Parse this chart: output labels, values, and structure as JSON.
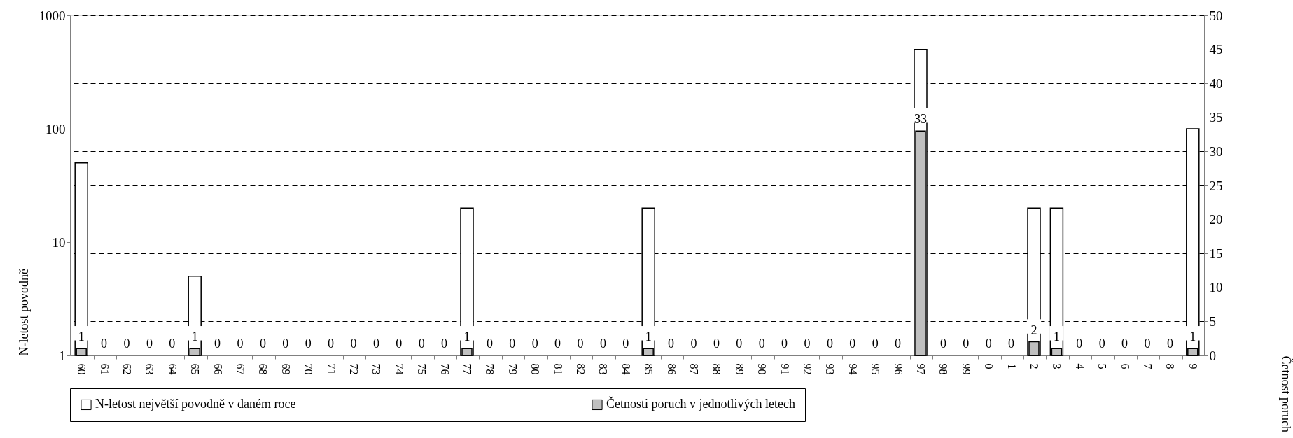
{
  "chart_data": {
    "type": "bar",
    "categories": [
      "60",
      "61",
      "62",
      "63",
      "64",
      "65",
      "66",
      "67",
      "68",
      "69",
      "70",
      "71",
      "72",
      "73",
      "74",
      "75",
      "76",
      "77",
      "78",
      "79",
      "80",
      "81",
      "82",
      "83",
      "84",
      "85",
      "86",
      "87",
      "88",
      "89",
      "90",
      "91",
      "92",
      "93",
      "94",
      "95",
      "96",
      "97",
      "98",
      "99",
      "0",
      "1",
      "2",
      "3",
      "4",
      "5",
      "6",
      "7",
      "8",
      "9"
    ],
    "series": [
      {
        "name": "N-letost největší povodně v daném roce",
        "color": "#ffffff",
        "values": [
          50,
          null,
          null,
          null,
          null,
          5,
          null,
          null,
          null,
          null,
          null,
          null,
          null,
          null,
          null,
          null,
          null,
          20,
          null,
          null,
          null,
          null,
          null,
          null,
          null,
          20,
          null,
          null,
          null,
          null,
          null,
          null,
          null,
          null,
          null,
          null,
          null,
          500,
          null,
          null,
          null,
          null,
          20,
          20,
          null,
          null,
          null,
          null,
          null,
          100
        ]
      },
      {
        "name": "Četnosti poruch v jednotlivých letech",
        "color": "#c0c0c0",
        "axis": "y2",
        "values": [
          1,
          0,
          0,
          0,
          0,
          1,
          0,
          0,
          0,
          0,
          0,
          0,
          0,
          0,
          0,
          0,
          0,
          1,
          0,
          0,
          0,
          0,
          0,
          0,
          0,
          1,
          0,
          0,
          0,
          0,
          0,
          0,
          0,
          0,
          0,
          0,
          0,
          33,
          0,
          0,
          0,
          0,
          2,
          1,
          0,
          0,
          0,
          0,
          0,
          1
        ],
        "value_labels": [
          "1",
          "0",
          "0",
          "0",
          "0",
          "1",
          "0",
          "0",
          "0",
          "0",
          "0",
          "0",
          "0",
          "0",
          "0",
          "0",
          "0",
          "1",
          "0",
          "0",
          "0",
          "0",
          "0",
          "0",
          "0",
          "1",
          "0",
          "0",
          "0",
          "0",
          "0",
          "0",
          "0",
          "0",
          "0",
          "0",
          "0",
          "33",
          "0",
          "0",
          "0",
          "0",
          "2",
          "1",
          "0",
          "0",
          "0",
          "0",
          "0",
          "1"
        ]
      }
    ],
    "ylabel": "N-letost povodně",
    "y2label": "Četnost poruch",
    "ylim": [
      1,
      1000
    ],
    "yticks": [
      1,
      10,
      100,
      1000
    ],
    "log": "y",
    "y2lim": [
      0,
      50
    ],
    "y2ticks": [
      0,
      5,
      10,
      15,
      20,
      25,
      30,
      35,
      40,
      45,
      50
    ],
    "grid": true,
    "legend": "bottom"
  }
}
